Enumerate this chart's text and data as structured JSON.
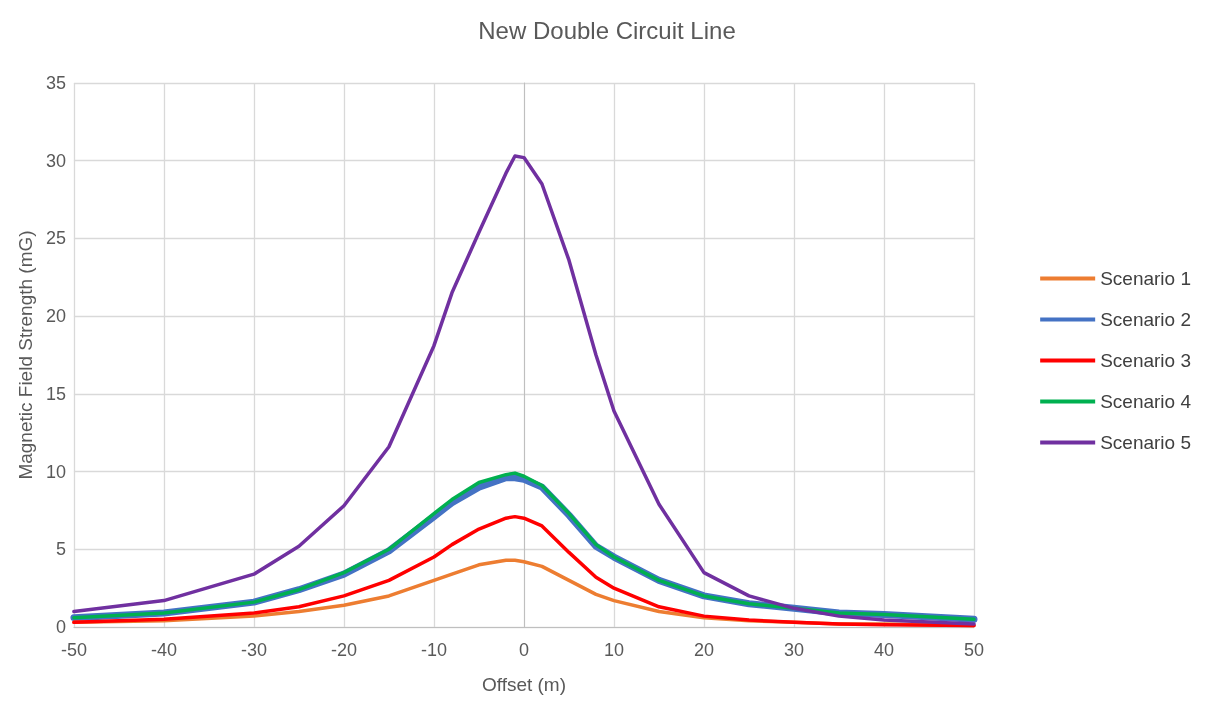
{
  "chart_data": {
    "type": "line",
    "title": "New Double Circuit Line",
    "xlabel": "Offset (m)",
    "ylabel": "Magnetic Field Strength (mG)",
    "x": [
      -50,
      -40,
      -30,
      -25,
      -20,
      -15,
      -10,
      -8,
      -5,
      -2,
      -1,
      0,
      2,
      5,
      8,
      10,
      15,
      20,
      25,
      30,
      35,
      40,
      50
    ],
    "series": [
      {
        "name": "Scenario 1",
        "color": "#ed7d31",
        "values": [
          0.3,
          0.4,
          0.7,
          1.0,
          1.4,
          2.0,
          3.0,
          3.4,
          4.0,
          4.3,
          4.3,
          4.2,
          3.9,
          3.0,
          2.1,
          1.7,
          1.0,
          0.6,
          0.4,
          0.3,
          0.2,
          0.2,
          0.1
        ]
      },
      {
        "name": "Scenario 2",
        "color": "#4472c4",
        "values": [
          0.6,
          0.9,
          1.6,
          2.4,
          3.4,
          4.9,
          7.1,
          8.0,
          9.0,
          9.6,
          9.6,
          9.5,
          9.0,
          7.2,
          5.2,
          4.5,
          3.0,
          2.0,
          1.5,
          1.2,
          0.9,
          0.8,
          0.5
        ]
      },
      {
        "name": "Scenario 3",
        "color": "#ff0000",
        "values": [
          0.3,
          0.5,
          0.9,
          1.3,
          2.0,
          3.0,
          4.5,
          5.3,
          6.3,
          7.0,
          7.1,
          7.0,
          6.5,
          4.8,
          3.2,
          2.5,
          1.3,
          0.7,
          0.45,
          0.3,
          0.2,
          0.15,
          0.1
        ]
      },
      {
        "name": "Scenario 4",
        "color": "#00b050",
        "values": [
          0.6,
          0.9,
          1.6,
          2.4,
          3.5,
          5.0,
          7.3,
          8.2,
          9.3,
          9.8,
          9.9,
          9.7,
          9.1,
          7.3,
          5.3,
          4.5,
          3.0,
          2.0,
          1.5,
          1.2,
          0.9,
          0.8,
          0.5
        ]
      },
      {
        "name": "Scenario 5",
        "color": "#7030a0",
        "values": [
          1.0,
          1.7,
          3.4,
          5.2,
          7.8,
          11.6,
          18.1,
          21.5,
          25.4,
          29.2,
          30.3,
          30.2,
          28.5,
          23.6,
          17.5,
          13.9,
          7.9,
          3.5,
          2.0,
          1.2,
          0.7,
          0.45,
          0.2
        ]
      }
    ],
    "xlim": [
      -50,
      50
    ],
    "xticks": [
      -50,
      -40,
      -30,
      -20,
      -10,
      0,
      10,
      20,
      30,
      40,
      50
    ],
    "ylim": [
      0,
      35
    ],
    "yticks": [
      0,
      5,
      10,
      15,
      20,
      25,
      30,
      35
    ],
    "grid": true,
    "legend": "right",
    "marker": "none",
    "line_style": "solid"
  }
}
